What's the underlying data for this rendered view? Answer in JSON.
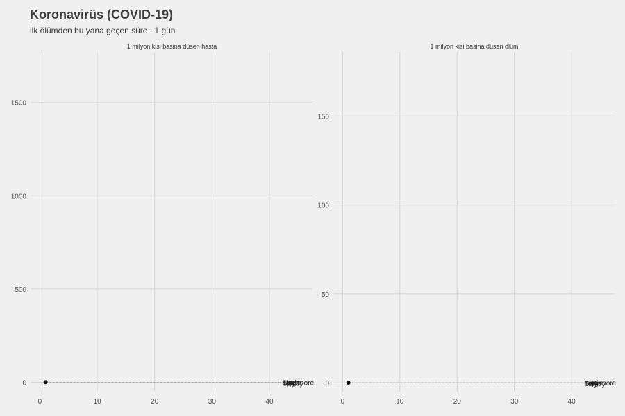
{
  "header": {
    "title": "Koronavirüs (COVID-19)",
    "subtitle": "ilk ölümden bu yana geçen süre : 1 gün"
  },
  "chart_data": [
    {
      "type": "scatter",
      "title": "1 milyon kisi basina düsen hasta",
      "xlabel": "",
      "ylabel": "",
      "xlim": [
        -1.5,
        47.5
      ],
      "ylim": [
        -50,
        1770
      ],
      "x_ticks": [
        0,
        10,
        20,
        30,
        40
      ],
      "y_ticks": [
        0,
        500,
        1000,
        1500
      ],
      "grid": true,
      "points": [
        {
          "x": 1,
          "y": 1
        }
      ],
      "baseline": {
        "x": [
          1,
          42
        ],
        "y": 0
      },
      "end_labels": [
        {
          "x": 42,
          "y": 0,
          "label": "Singapore"
        },
        {
          "x": 42,
          "y": 0,
          "label": "Italy"
        },
        {
          "x": 42,
          "y": 0,
          "label": "Spain"
        },
        {
          "x": 42,
          "y": 0,
          "label": "Turkey"
        },
        {
          "x": 42,
          "y": 0,
          "label": "Japan"
        }
      ]
    },
    {
      "type": "scatter",
      "title": "1 milyon kisi basina düsen ölüm",
      "xlabel": "",
      "ylabel": "",
      "xlim": [
        -1.5,
        47.5
      ],
      "ylim": [
        -5,
        186
      ],
      "x_ticks": [
        0,
        10,
        20,
        30,
        40
      ],
      "y_ticks": [
        0,
        50,
        100,
        150
      ],
      "grid": true,
      "points": [
        {
          "x": 1,
          "y": 0
        }
      ],
      "baseline": {
        "x": [
          1,
          42
        ],
        "y": 0
      },
      "end_labels": [
        {
          "x": 42,
          "y": 0,
          "label": "Singapore"
        },
        {
          "x": 42,
          "y": 0,
          "label": "Italy"
        },
        {
          "x": 42,
          "y": 0,
          "label": "Spain"
        },
        {
          "x": 42,
          "y": 0,
          "label": "Turkey"
        },
        {
          "x": 42,
          "y": 0,
          "label": "Japan"
        }
      ]
    }
  ]
}
